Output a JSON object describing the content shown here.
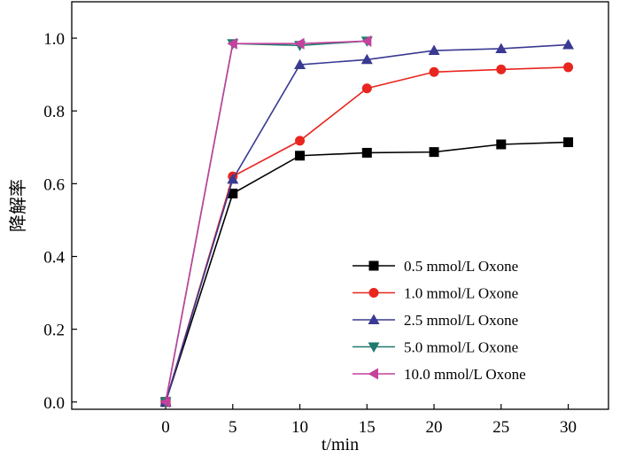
{
  "chart_data": {
    "type": "line",
    "title": "",
    "xlabel": "t/min",
    "ylabel": "降解率",
    "xlim": [
      -7,
      33
    ],
    "ylim": [
      -0.02,
      1.1
    ],
    "x_ticks": [
      0,
      5,
      10,
      15,
      20,
      25,
      30
    ],
    "y_ticks": [
      0.0,
      0.2,
      0.4,
      0.6,
      0.8,
      1.0
    ],
    "x_tick_labels": [
      "0",
      "5",
      "10",
      "15",
      "20",
      "25",
      "30"
    ],
    "y_tick_labels": [
      "0.0",
      "0.2",
      "0.4",
      "0.6",
      "0.8",
      "1.0"
    ],
    "grid": false,
    "legend_position": "bottom-right",
    "series": [
      {
        "name": "0.5 mmol/L Oxone",
        "color": "#000000",
        "marker": "square",
        "x": [
          0,
          5,
          10,
          15,
          20,
          25,
          30
        ],
        "y": [
          0.0,
          0.573,
          0.677,
          0.685,
          0.687,
          0.708,
          0.714
        ]
      },
      {
        "name": "1.0 mmol/L Oxone",
        "color": "#e8251f",
        "marker": "circle",
        "x": [
          0,
          5,
          10,
          15,
          20,
          25,
          30
        ],
        "y": [
          0.0,
          0.62,
          0.718,
          0.862,
          0.907,
          0.914,
          0.92
        ]
      },
      {
        "name": "2.5 mmol/L Oxone",
        "color": "#3a3a92",
        "marker": "triangle-up",
        "x": [
          0,
          5,
          10,
          15,
          20,
          25,
          30
        ],
        "y": [
          0.0,
          0.612,
          0.927,
          0.941,
          0.966,
          0.971,
          0.982
        ]
      },
      {
        "name": "5.0 mmol/L Oxone",
        "color": "#1f7a6e",
        "marker": "triangle-down",
        "x": [
          0,
          5,
          10,
          15
        ],
        "y": [
          0.0,
          0.985,
          0.98,
          0.992
        ]
      },
      {
        "name": "10.0 mmol/L Oxone",
        "color": "#c4419c",
        "marker": "triangle-left",
        "x": [
          0,
          5,
          10,
          15
        ],
        "y": [
          0.0,
          0.985,
          0.985,
          0.992
        ]
      }
    ]
  }
}
